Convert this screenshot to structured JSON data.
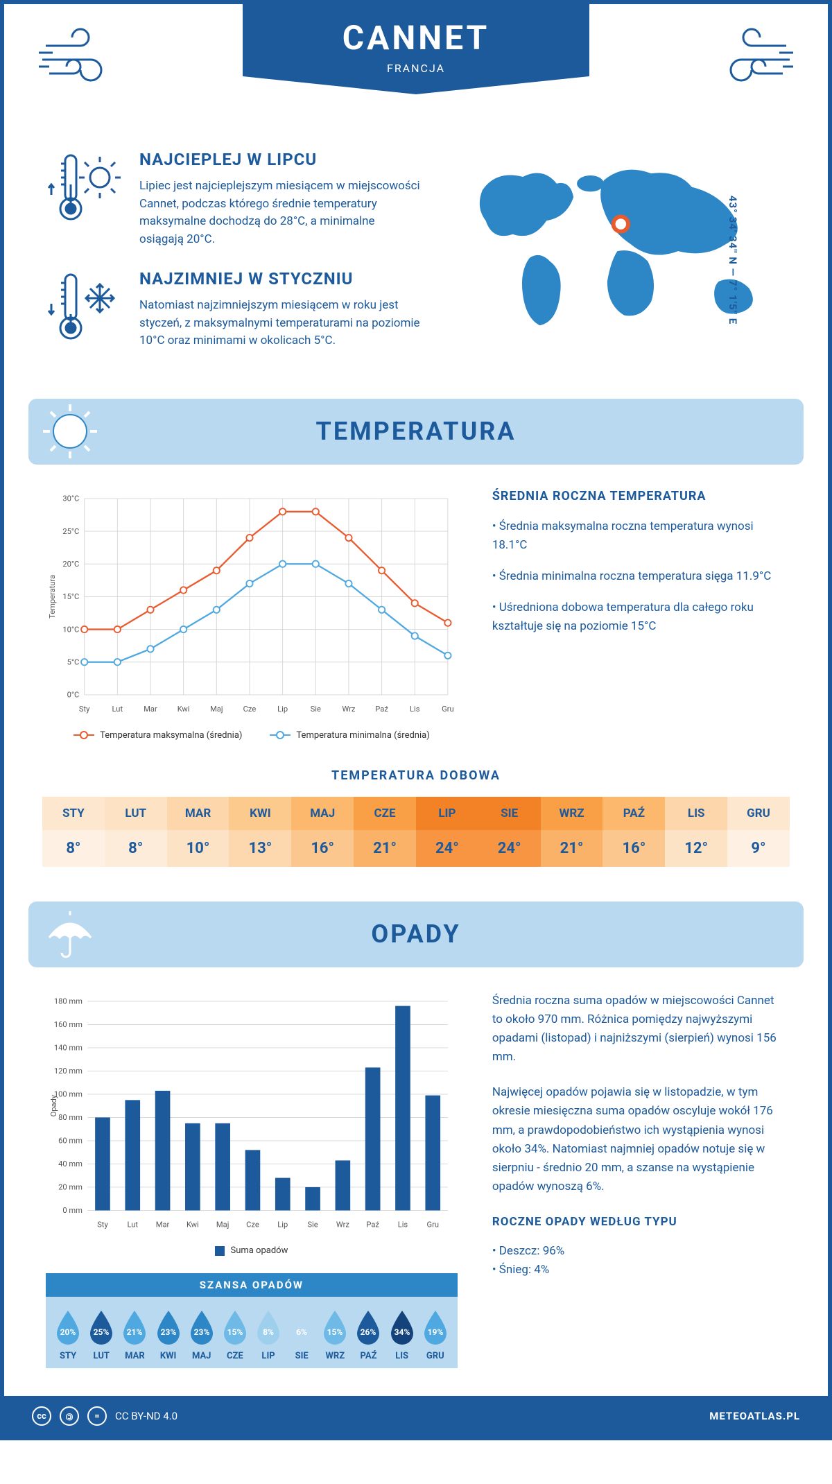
{
  "header": {
    "title": "CANNET",
    "subtitle": "FRANCJA"
  },
  "coords": "43° 34' 34'' N — 7° 1'5'' E",
  "hottest": {
    "title": "NAJCIEPLEJ W LIPCU",
    "text": "Lipiec jest najcieplejszym miesiącem w miejscowości Cannet, podczas którego średnie temperatury maksymalne dochodzą do 28°C, a minimalne osiągają 20°C."
  },
  "coldest": {
    "title": "NAJZIMNIEJ W STYCZNIU",
    "text": "Natomiast najzimniejszym miesiącem w roku jest styczeń, z maksymalnymi temperaturami na poziomie 10°C oraz minimami w okolicach 5°C."
  },
  "colors": {
    "primary": "#1c5a9c",
    "light": "#b8d9f0",
    "mid": "#2d86c6",
    "max_line": "#e85b2f",
    "min_line": "#4fa8e0",
    "bar": "#1c5a9c",
    "grid": "#cfcfcf"
  },
  "temperature": {
    "section_title": "TEMPERATURA",
    "chart": {
      "type": "line",
      "x_labels": [
        "Sty",
        "Lut",
        "Mar",
        "Kwi",
        "Maj",
        "Cze",
        "Lip",
        "Sie",
        "Wrz",
        "Paź",
        "Lis",
        "Gru"
      ],
      "y_label": "Temperatura",
      "y_ticks": [
        0,
        5,
        10,
        15,
        20,
        25,
        30
      ],
      "y_tick_labels": [
        "0°C",
        "5°C",
        "10°C",
        "15°C",
        "20°C",
        "25°C",
        "30°C"
      ],
      "ylim": [
        0,
        30
      ],
      "series": [
        {
          "name": "Temperatura maksymalna (średnia)",
          "color": "#e85b2f",
          "values": [
            10,
            10,
            13,
            16,
            19,
            24,
            28,
            28,
            24,
            19,
            14,
            11
          ]
        },
        {
          "name": "Temperatura minimalna (średnia)",
          "color": "#4fa8e0",
          "values": [
            5,
            5,
            7,
            10,
            13,
            17,
            20,
            20,
            17,
            13,
            9,
            6
          ]
        }
      ],
      "line_width": 2.5,
      "marker": "circle",
      "marker_size": 5,
      "grid_color": "#d5d5d5",
      "background": "#ffffff"
    },
    "summary": {
      "title": "ŚREDNIA ROCZNA TEMPERATURA",
      "bullets": [
        "• Średnia maksymalna roczna temperatura wynosi 18.1°C",
        "• Średnia minimalna roczna temperatura sięga 11.9°C",
        "• Uśredniona dobowa temperatura dla całego roku kształtuje się na poziomie 15°C"
      ]
    },
    "daily": {
      "title": "TEMPERATURA DOBOWA",
      "months": [
        "STY",
        "LUT",
        "MAR",
        "KWI",
        "MAJ",
        "CZE",
        "LIP",
        "SIE",
        "WRZ",
        "PAŹ",
        "LIS",
        "GRU"
      ],
      "values": [
        "8°",
        "8°",
        "10°",
        "13°",
        "16°",
        "21°",
        "24°",
        "24°",
        "21°",
        "16°",
        "12°",
        "9°"
      ],
      "head_colors": [
        "#fde7ce",
        "#fde2c3",
        "#fdd7ab",
        "#fdca8e",
        "#fcb96e",
        "#f99f45",
        "#f38226",
        "#f38226",
        "#f99f45",
        "#fcb96e",
        "#fdd7ab",
        "#fde7ce"
      ],
      "val_colors": [
        "#fef1e4",
        "#fdecd9",
        "#fde3c5",
        "#fdd8ae",
        "#fcc78f",
        "#fab168",
        "#f79542",
        "#f79542",
        "#fab168",
        "#fcc78f",
        "#fde3c5",
        "#fef1e4"
      ]
    }
  },
  "precipitation": {
    "section_title": "OPADY",
    "chart": {
      "type": "bar",
      "x_labels": [
        "Sty",
        "Lut",
        "Mar",
        "Kwi",
        "Maj",
        "Cze",
        "Lip",
        "Sie",
        "Wrz",
        "Paź",
        "Lis",
        "Gru"
      ],
      "y_label": "Opady",
      "y_ticks": [
        0,
        20,
        40,
        60,
        80,
        100,
        120,
        140,
        160,
        180
      ],
      "y_tick_labels": [
        "0 mm",
        "20 mm",
        "40 mm",
        "60 mm",
        "80 mm",
        "100 mm",
        "120 mm",
        "140 mm",
        "160 mm",
        "180 mm"
      ],
      "ylim": [
        0,
        180
      ],
      "bar_color": "#1c5a9c",
      "bar_width": 0.5,
      "grid_color": "#d5d5d5",
      "legend": "Suma opadów",
      "values": [
        80,
        95,
        103,
        75,
        75,
        52,
        28,
        20,
        43,
        123,
        176,
        99
      ]
    },
    "text1": "Średnia roczna suma opadów w miejscowości Cannet to około 970 mm. Różnica pomiędzy najwyższymi opadami (listopad) i najniższymi (sierpień) wynosi 156 mm.",
    "text2": "Najwięcej opadów pojawia się w listopadzie, w tym okresie miesięczna suma opadów oscyluje wokół 176 mm, a prawdopodobieństwo ich wystąpienia wynosi około 34%. Natomiast najmniej opadów notuje się w sierpniu - średnio 20 mm, a szanse na wystąpienie opadów wynoszą 6%.",
    "by_type": {
      "title": "ROCZNE OPADY WEDŁUG TYPU",
      "items": [
        "• Deszcz: 96%",
        "• Śnieg: 4%"
      ]
    },
    "chance": {
      "title": "SZANSA OPADÓW",
      "months": [
        "STY",
        "LUT",
        "MAR",
        "KWI",
        "MAJ",
        "CZE",
        "LIP",
        "SIE",
        "WRZ",
        "PAŹ",
        "LIS",
        "GRU"
      ],
      "values": [
        "20%",
        "25%",
        "21%",
        "23%",
        "23%",
        "15%",
        "8%",
        "6%",
        "15%",
        "26%",
        "34%",
        "19%"
      ],
      "drop_colors": [
        "#4fa8e0",
        "#1c5a9c",
        "#4fa8e0",
        "#2d86c6",
        "#2d86c6",
        "#6eb9e6",
        "#9ed0ed",
        "#b8d9f0",
        "#6eb9e6",
        "#1c5a9c",
        "#14427a",
        "#4fa8e0"
      ]
    }
  },
  "footer": {
    "license": "CC BY-ND 4.0",
    "site": "METEOATLAS.PL"
  }
}
